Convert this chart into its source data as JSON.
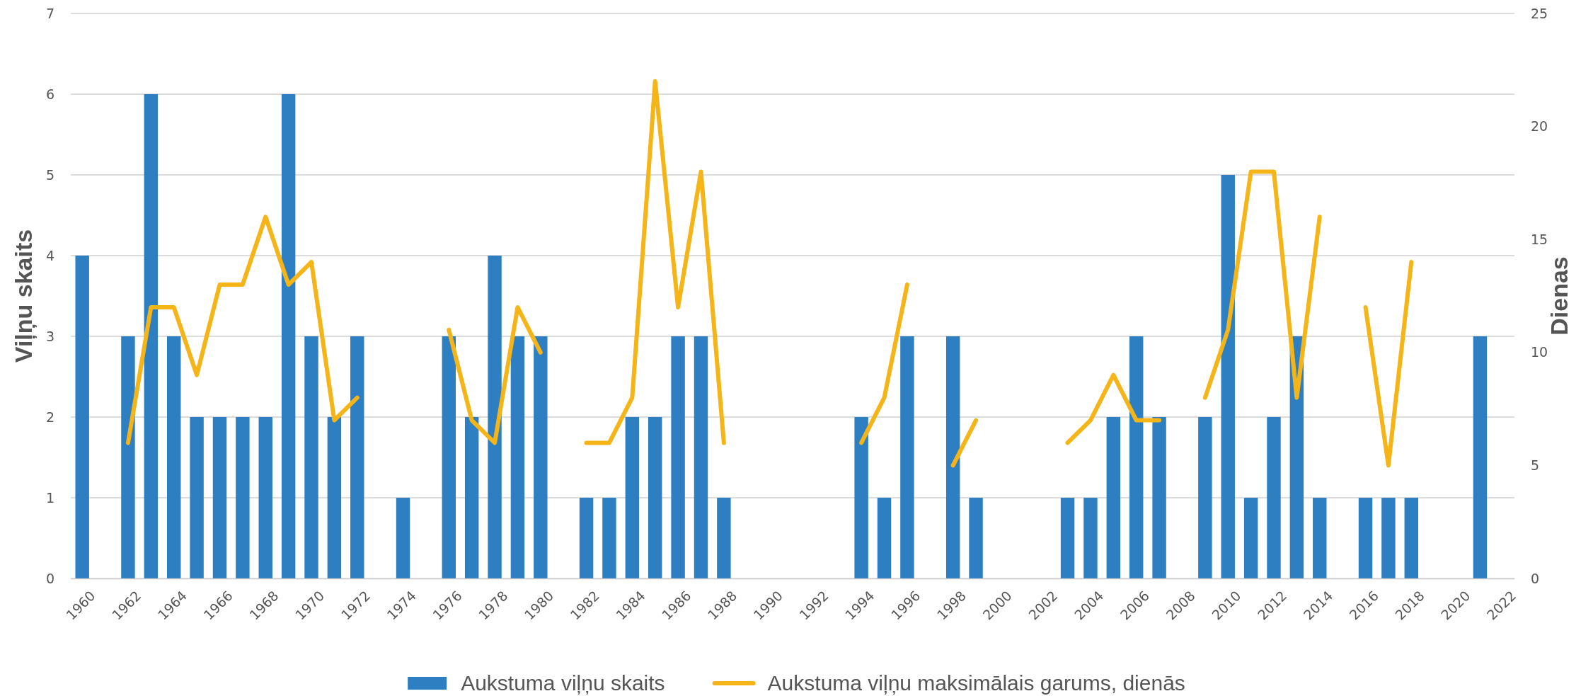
{
  "chart_data": {
    "type": "bar",
    "ylabel": "Viļņu skaits",
    "y2label": "Dienas",
    "categories": [
      "1960",
      null,
      "1962",
      null,
      "1964",
      null,
      "1966",
      null,
      "1968",
      null,
      "1970",
      null,
      "1972",
      null,
      "1974",
      null,
      "1976",
      null,
      "1978",
      null,
      "1980",
      null,
      "1982",
      null,
      "1984",
      null,
      "1986",
      null,
      "1988",
      null,
      "1990",
      null,
      "1992",
      null,
      "1994",
      null,
      "1996",
      null,
      "1998",
      null,
      "2000",
      null,
      "2002",
      null,
      "2004",
      null,
      "2006",
      null,
      "2008",
      null,
      "2010",
      null,
      "2012",
      null,
      "2014",
      null,
      "2016",
      null,
      "2018",
      null,
      "2020",
      null,
      "2022"
    ],
    "series": [
      {
        "name": "Aukstuma viļņu skaits",
        "color": "#2e7fc1",
        "values": [
          4,
          0,
          3,
          6,
          3,
          2,
          2,
          2,
          2,
          6,
          3,
          2,
          3,
          0,
          1,
          0,
          3,
          2,
          4,
          3,
          3,
          0,
          1,
          1,
          2,
          2,
          3,
          3,
          1,
          0,
          0,
          0,
          0,
          0,
          2,
          1,
          3,
          0,
          3,
          1,
          0,
          0,
          0,
          1,
          1,
          2,
          3,
          2,
          0,
          2,
          5,
          1,
          2,
          3,
          1,
          0,
          1,
          1,
          1,
          0,
          0,
          3,
          0
        ]
      },
      {
        "name": "Aukstuma viļņu maksimālais garums, dienās",
        "type": "line",
        "axis": "y2",
        "color": "#f5b417",
        "values": [
          null,
          null,
          6,
          12,
          12,
          9,
          13,
          13,
          16,
          13,
          14,
          7,
          8,
          null,
          null,
          null,
          11,
          7,
          6,
          12,
          10,
          null,
          6,
          6,
          8,
          22,
          12,
          18,
          6,
          null,
          null,
          null,
          null,
          null,
          6,
          8,
          13,
          null,
          5,
          7,
          null,
          null,
          null,
          6,
          7,
          9,
          7,
          7,
          null,
          8,
          11,
          18,
          18,
          8,
          16,
          null,
          12,
          5,
          14,
          null,
          null,
          null,
          null
        ]
      }
    ],
    "ylim": [
      0,
      7
    ],
    "yticks": [
      0,
      1,
      2,
      3,
      4,
      5,
      6,
      7
    ],
    "y2lim": [
      0,
      25
    ],
    "y2ticks": [
      0,
      5,
      10,
      15,
      20,
      25
    ],
    "grid": "y",
    "legend": "bottom",
    "line_style": "solid",
    "marker": "none"
  }
}
